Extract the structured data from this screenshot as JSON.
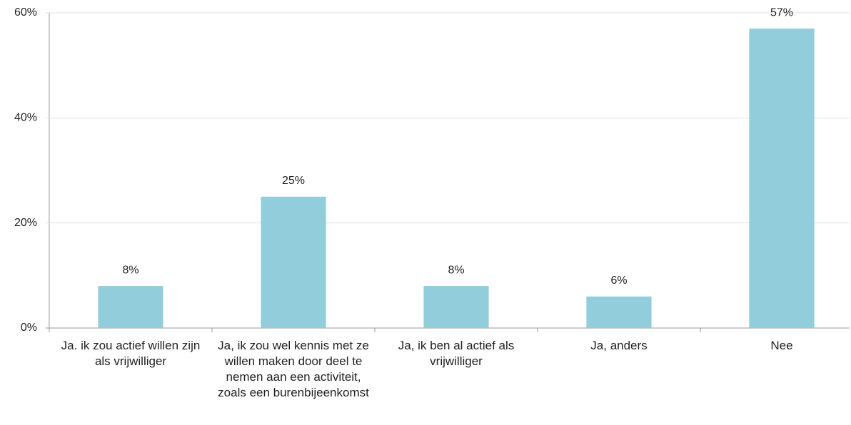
{
  "chart_data": {
    "type": "bar",
    "categories": [
      "Ja. ik zou actief willen zijn als vrijwilliger",
      "Ja, ik zou wel kennis met ze willen maken door deel te nemen aan een activiteit, zoals een burenbijeenkomst",
      "Ja, ik ben al actief als vrijwilliger",
      "Ja, anders",
      "Nee"
    ],
    "values": [
      8,
      25,
      8,
      6,
      57
    ],
    "value_labels": [
      "8%",
      "25%",
      "8%",
      "6%",
      "57%"
    ],
    "color": "#92cddc",
    "ylim": [
      0,
      60
    ],
    "yticks": [
      {
        "value": 0,
        "label": "0%"
      },
      {
        "value": 20,
        "label": "20%"
      },
      {
        "value": 40,
        "label": "40%"
      },
      {
        "value": 60,
        "label": "60%"
      }
    ],
    "grid": true
  }
}
